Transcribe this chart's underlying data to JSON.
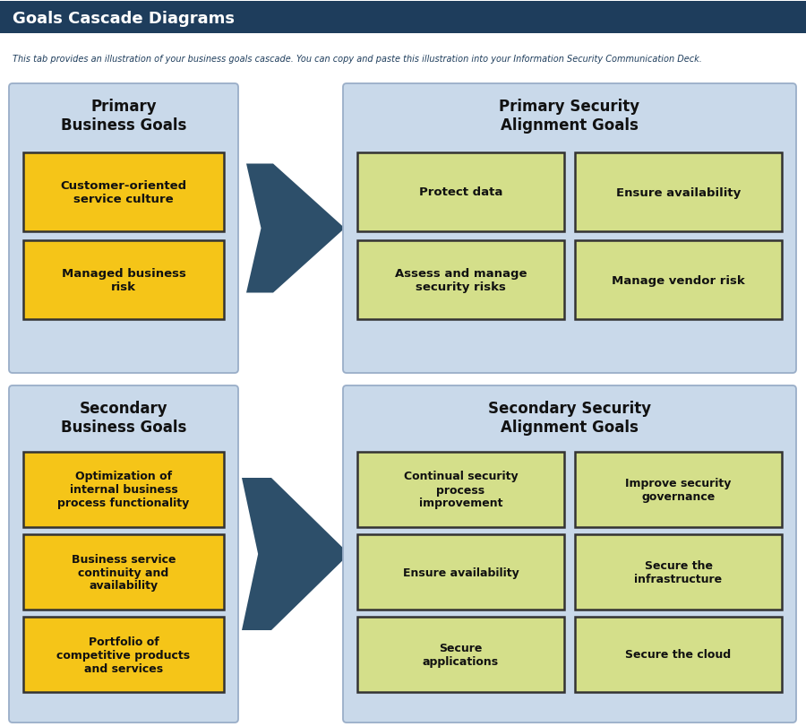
{
  "title": "Goals Cascade Diagrams",
  "subtitle": "This tab provides an illustration of your business goals cascade. You can copy and paste this illustration into your Information Security Communication Deck.",
  "header_bg": "#1e3d5c",
  "header_text": "#ffffff",
  "subtitle_text": "#1e3d5c",
  "panel_bg": "#c9d9ea",
  "panel_border": "#9aaec8",
  "arrow_color": "#2d4f6a",
  "fig_bg": "#ffffff",
  "primary_biz": {
    "title": "Primary\nBusiness Goals",
    "items": [
      "Customer-oriented\nservice culture",
      "Managed business\nrisk"
    ],
    "item_color": "#f5c518",
    "item_border": "#333333"
  },
  "primary_sec": {
    "title": "Primary Security\nAlignment Goals",
    "items": [
      [
        "Protect data",
        "Ensure availability"
      ],
      [
        "Assess and manage\nsecurity risks",
        "Manage vendor risk"
      ]
    ],
    "item_color": "#d4df8a",
    "item_border": "#333333"
  },
  "secondary_biz": {
    "title": "Secondary\nBusiness Goals",
    "items": [
      "Optimization of\ninternal business\nprocess functionality",
      "Business service\ncontinuity and\navailability",
      "Portfolio of\ncompetitive products\nand services"
    ],
    "item_color": "#f5c518",
    "item_border": "#333333"
  },
  "secondary_sec": {
    "title": "Secondary Security\nAlignment Goals",
    "items": [
      [
        "Continual security\nprocess\nimprovement",
        "Improve security\ngovernance"
      ],
      [
        "Ensure availability",
        "Secure the\ninfrastructure"
      ],
      [
        "Secure\napplications",
        "Secure the cloud"
      ]
    ],
    "item_color": "#d4df8a",
    "item_border": "#333333"
  },
  "figwidth": 9.0,
  "figheight": 8.12,
  "dpi": 100
}
